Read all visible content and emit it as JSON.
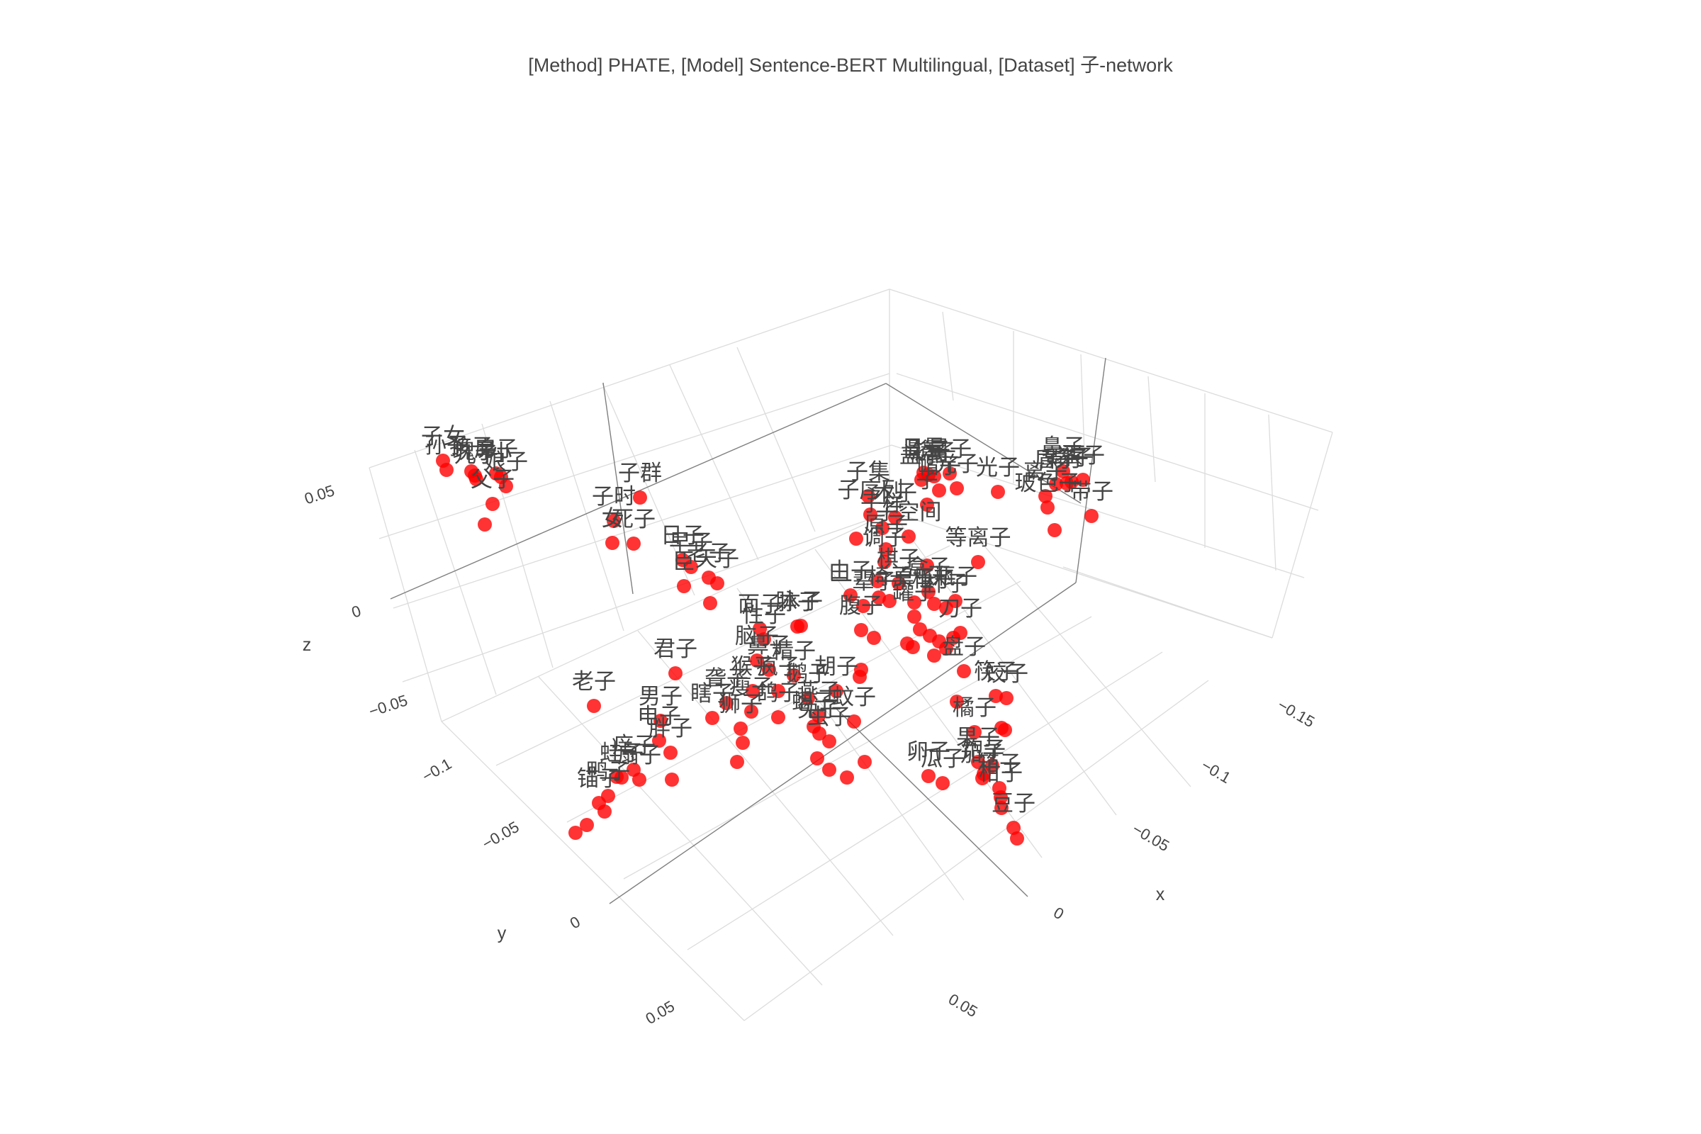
{
  "chart_data": {
    "type": "scatter3d",
    "title": "[Method] PHATE, [Model] Sentence-BERT Multilingual, [Dataset] 子-network",
    "axes": {
      "x": {
        "title": "x",
        "ticks": [
          "−0.15",
          "−0.1",
          "−0.05",
          "0",
          "0.05"
        ]
      },
      "y": {
        "title": "y",
        "ticks": [
          "−0.1",
          "−0.05",
          "0",
          "0.05"
        ]
      },
      "z": {
        "title": "z",
        "ticks": [
          "−0.05",
          "0",
          "0.05"
        ]
      }
    },
    "marker_color": "#ff0000",
    "points": [
      {
        "label": "子女",
        "sx": 625,
        "sy": 650
      },
      {
        "label": "孙子",
        "sx": 630,
        "sy": 663
      },
      {
        "label": "孩子",
        "sx": 665,
        "sy": 665
      },
      {
        "label": "瑰子",
        "sx": 670,
        "sy": 671
      },
      {
        "label": "儿子",
        "sx": 672,
        "sy": 676
      },
      {
        "label": "房子",
        "sx": 700,
        "sy": 668
      },
      {
        "label": "娘子",
        "sx": 714,
        "sy": 686
      },
      {
        "label": "小",
        "sx": 707,
        "sy": 673
      },
      {
        "label": "父子",
        "sx": 695,
        "sy": 711
      },
      {
        "label": "",
        "sx": 684,
        "sy": 740
      },
      {
        "label": "子群",
        "sx": 903,
        "sy": 702
      },
      {
        "label": "子时",
        "sx": 866,
        "sy": 735
      },
      {
        "label": "女",
        "sx": 864,
        "sy": 766
      },
      {
        "label": "死子",
        "sx": 894,
        "sy": 767
      },
      {
        "label": "日子",
        "sx": 963,
        "sy": 790
      },
      {
        "label": "早子",
        "sx": 975,
        "sy": 800
      },
      {
        "label": "老子",
        "sx": 1000,
        "sy": 815
      },
      {
        "label": "臣",
        "sx": 965,
        "sy": 827
      },
      {
        "label": "天子",
        "sx": 1012,
        "sy": 823
      },
      {
        "label": "",
        "sx": 1002,
        "sy": 851
      },
      {
        "label": "面子",
        "sx": 1072,
        "sy": 887
      },
      {
        "label": "脉子",
        "sx": 1125,
        "sy": 884
      },
      {
        "label": "本子",
        "sx": 1130,
        "sy": 883
      },
      {
        "label": "君子",
        "sx": 953,
        "sy": 950
      },
      {
        "label": "性子",
        "sx": 1078,
        "sy": 902
      },
      {
        "label": "老子",
        "sx": 838,
        "sy": 996
      },
      {
        "label": "男子",
        "sx": 932,
        "sy": 1017
      },
      {
        "label": "脑子",
        "sx": 1068,
        "sy": 932
      },
      {
        "label": "鼻子",
        "sx": 1085,
        "sy": 945
      },
      {
        "label": "精子",
        "sx": 1120,
        "sy": 953
      },
      {
        "label": "瞎子",
        "sx": 1005,
        "sy": 1013
      },
      {
        "label": "聋子",
        "sx": 1025,
        "sy": 992
      },
      {
        "label": "猴子",
        "sx": 1062,
        "sy": 975
      },
      {
        "label": "疯子",
        "sx": 1098,
        "sy": 975
      },
      {
        "label": "瘦子",
        "sx": 1060,
        "sy": 1004
      },
      {
        "label": "狮子",
        "sx": 1045,
        "sy": 1028
      },
      {
        "label": "",
        "sx": 1048,
        "sy": 1048
      },
      {
        "label": "",
        "sx": 1040,
        "sy": 1075
      },
      {
        "label": "鸽子",
        "sx": 1098,
        "sy": 1012
      },
      {
        "label": "鹅子",
        "sx": 1140,
        "sy": 985
      },
      {
        "label": "胡子",
        "sx": 1180,
        "sy": 975
      },
      {
        "label": "燕子",
        "sx": 1155,
        "sy": 1010
      },
      {
        "label": "蝎子",
        "sx": 1148,
        "sy": 1025
      },
      {
        "label": "蚊子",
        "sx": 1205,
        "sy": 1018
      },
      {
        "label": "兔子",
        "sx": 1156,
        "sy": 1035
      },
      {
        "label": "虫子",
        "sx": 1170,
        "sy": 1046
      },
      {
        "label": "",
        "sx": 1153,
        "sy": 1070
      },
      {
        "label": "",
        "sx": 1170,
        "sy": 1086
      },
      {
        "label": "",
        "sx": 1195,
        "sy": 1097
      },
      {
        "label": "",
        "sx": 1220,
        "sy": 1075
      },
      {
        "label": "胖子",
        "sx": 946,
        "sy": 1062
      },
      {
        "label": "痒子",
        "sx": 894,
        "sy": 1086
      },
      {
        "label": "电子",
        "sx": 930,
        "sy": 1045
      },
      {
        "label": "扇子",
        "sx": 902,
        "sy": 1100
      },
      {
        "label": "",
        "sx": 948,
        "sy": 1100
      },
      {
        "label": "蛙子",
        "sx": 877,
        "sy": 1097
      },
      {
        "label": "鸭子",
        "sx": 858,
        "sy": 1123
      },
      {
        "label": "锚子",
        "sx": 845,
        "sy": 1133
      },
      {
        "label": "",
        "sx": 828,
        "sy": 1164
      },
      {
        "label": "",
        "sx": 812,
        "sy": 1175
      },
      {
        "label": "",
        "sx": 853,
        "sy": 1145
      },
      {
        "label": "",
        "sx": 870,
        "sy": 1096
      },
      {
        "label": "日晕",
        "sx": 1303,
        "sy": 667
      },
      {
        "label": "影子",
        "sx": 1310,
        "sy": 670
      },
      {
        "label": "镜子",
        "sx": 1318,
        "sy": 672
      },
      {
        "label": "星子",
        "sx": 1340,
        "sy": 668
      },
      {
        "label": "光子",
        "sx": 1350,
        "sy": 689
      },
      {
        "label": "光子",
        "sx": 1408,
        "sy": 694
      },
      {
        "label": "盖子",
        "sx": 1300,
        "sy": 677
      },
      {
        "label": "帽子",
        "sx": 1325,
        "sy": 692
      },
      {
        "label": "子集",
        "sx": 1225,
        "sy": 700
      },
      {
        "label": "子",
        "sx": 1308,
        "sy": 712
      },
      {
        "label": "子序列",
        "sx": 1228,
        "sy": 726
      },
      {
        "label": "木子",
        "sx": 1263,
        "sy": 730
      },
      {
        "label": "子样",
        "sx": 1245,
        "sy": 745
      },
      {
        "label": "子空间",
        "sx": 1282,
        "sy": 757
      },
      {
        "label": "等离子",
        "sx": 1380,
        "sy": 793
      },
      {
        "label": "原子",
        "sx": 1250,
        "sy": 775
      },
      {
        "label": "",
        "sx": 1208,
        "sy": 760
      },
      {
        "label": "调子",
        "sx": 1248,
        "sy": 793
      },
      {
        "label": "",
        "sx": 1238,
        "sy": 820
      },
      {
        "label": "",
        "sx": 1308,
        "sy": 798
      },
      {
        "label": "棋子",
        "sx": 1268,
        "sy": 823
      },
      {
        "label": "盒子",
        "sx": 1310,
        "sy": 835
      },
      {
        "label": "",
        "sx": 1240,
        "sy": 843
      },
      {
        "label": "由子",
        "sx": 1200,
        "sy": 840
      },
      {
        "label": "一辈子",
        "sx": 1218,
        "sy": 855
      },
      {
        "label": "椅子",
        "sx": 1255,
        "sy": 848
      },
      {
        "label": "桌子",
        "sx": 1290,
        "sy": 850
      },
      {
        "label": "柜子",
        "sx": 1318,
        "sy": 852
      },
      {
        "label": "杯子",
        "sx": 1335,
        "sy": 858
      },
      {
        "label": "瓶子",
        "sx": 1348,
        "sy": 848
      },
      {
        "label": "罐子",
        "sx": 1290,
        "sy": 870
      },
      {
        "label": "",
        "sx": 1298,
        "sy": 888
      },
      {
        "label": "",
        "sx": 1312,
        "sy": 897
      },
      {
        "label": "",
        "sx": 1325,
        "sy": 905
      },
      {
        "label": "",
        "sx": 1335,
        "sy": 915
      },
      {
        "label": "",
        "sx": 1345,
        "sy": 900
      },
      {
        "label": "",
        "sx": 1318,
        "sy": 925
      },
      {
        "label": "",
        "sx": 1280,
        "sy": 908
      },
      {
        "label": "",
        "sx": 1288,
        "sy": 913
      },
      {
        "label": "刀子",
        "sx": 1355,
        "sy": 893
      },
      {
        "label": "腹子",
        "sx": 1215,
        "sy": 889
      },
      {
        "label": "",
        "sx": 1233,
        "sy": 900
      },
      {
        "label": "",
        "sx": 1215,
        "sy": 945
      },
      {
        "label": "",
        "sx": 1213,
        "sy": 955
      },
      {
        "label": "盘子",
        "sx": 1360,
        "sy": 947
      },
      {
        "label": "",
        "sx": 1350,
        "sy": 990
      },
      {
        "label": "筷子",
        "sx": 1405,
        "sy": 982
      },
      {
        "label": "饺子",
        "sx": 1420,
        "sy": 985
      },
      {
        "label": "",
        "sx": 1418,
        "sy": 1030
      },
      {
        "label": "",
        "sx": 1413,
        "sy": 1027
      },
      {
        "label": "橘子",
        "sx": 1375,
        "sy": 1033
      },
      {
        "label": "卵子",
        "sx": 1310,
        "sy": 1095
      },
      {
        "label": "瓜子",
        "sx": 1330,
        "sy": 1105
      },
      {
        "label": "果子",
        "sx": 1380,
        "sy": 1075
      },
      {
        "label": "饱子",
        "sx": 1388,
        "sy": 1092
      },
      {
        "label": "茄子",
        "sx": 1386,
        "sy": 1098
      },
      {
        "label": "",
        "sx": 1400,
        "sy": 1080
      },
      {
        "label": "箱子",
        "sx": 1410,
        "sy": 1112
      },
      {
        "label": "柑子",
        "sx": 1412,
        "sy": 1125
      },
      {
        "label": "豆子",
        "sx": 1430,
        "sy": 1168
      },
      {
        "label": "",
        "sx": 1435,
        "sy": 1183
      },
      {
        "label": "",
        "sx": 1413,
        "sy": 1140
      },
      {
        "label": "鼻子",
        "sx": 1500,
        "sy": 665
      },
      {
        "label": "扇子",
        "sx": 1512,
        "sy": 680
      },
      {
        "label": "盾子",
        "sx": 1490,
        "sy": 683
      },
      {
        "label": "影子",
        "sx": 1505,
        "sy": 682
      },
      {
        "label": "离子",
        "sx": 1475,
        "sy": 700
      },
      {
        "label": "蛋子",
        "sx": 1528,
        "sy": 677
      },
      {
        "label": "带子",
        "sx": 1540,
        "sy": 728
      },
      {
        "label": "玻色子",
        "sx": 1478,
        "sy": 716
      },
      {
        "label": "",
        "sx": 1488,
        "sy": 748
      }
    ]
  }
}
